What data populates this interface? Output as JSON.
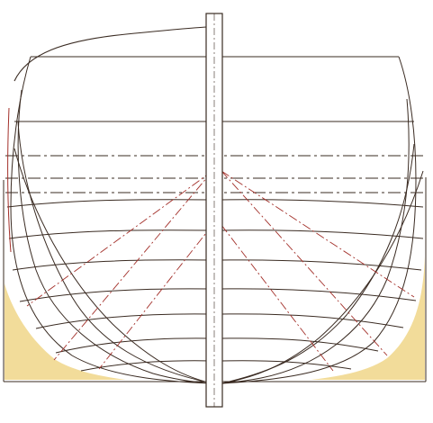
{
  "colors": {
    "background": "#ffffff",
    "ink": "#3a2b22",
    "red_ink": "#a3302a",
    "ochre_fill": "#f2dc9a"
  }
}
